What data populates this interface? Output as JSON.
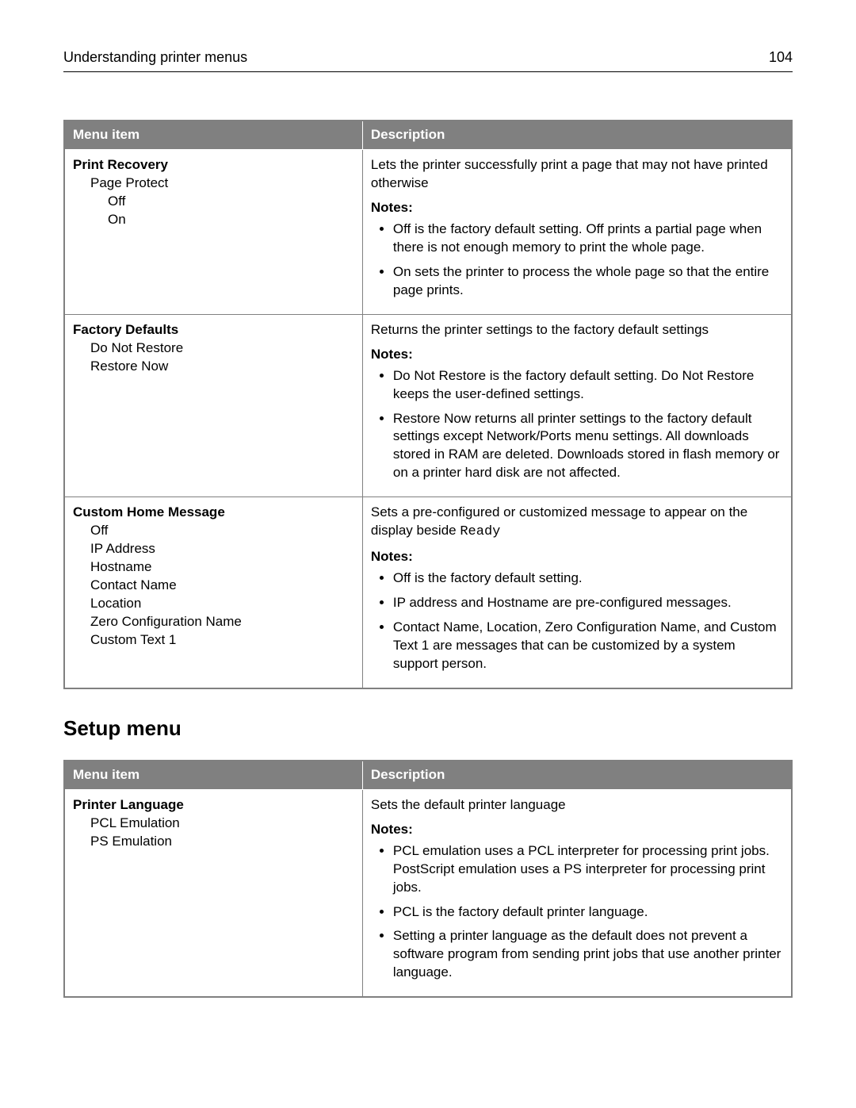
{
  "header": {
    "title": "Understanding printer menus",
    "page": "104"
  },
  "section_title": "Setup menu",
  "columns": {
    "menu": "Menu item",
    "desc": "Description"
  },
  "table1": {
    "rows": [
      {
        "title": "Print Recovery",
        "items_l1": [
          "Page Protect"
        ],
        "items_l2": [
          "Off",
          "On"
        ],
        "lead": "Lets the printer successfully print a page that may not have printed otherwise",
        "notes_label": "Notes:",
        "notes": [
          "Off is the factory default setting. Off prints a partial page when there is not enough memory to print the whole page.",
          "On sets the printer to process the whole page so that the entire page prints."
        ]
      },
      {
        "title": "Factory Defaults",
        "items_l1": [
          "Do Not Restore",
          "Restore Now"
        ],
        "items_l2": [],
        "lead": "Returns the printer settings to the factory default settings",
        "notes_label": "Notes:",
        "notes": [
          "Do Not Restore is the factory default setting. Do Not Restore keeps the user-defined settings.",
          "Restore Now returns all printer settings to the factory default settings except Network/Ports menu settings. All downloads stored in RAM are deleted. Downloads stored in flash memory or on a printer hard disk are not affected."
        ]
      },
      {
        "title": "Custom Home Message",
        "items_l1": [
          "Off",
          "IP Address",
          "Hostname",
          "Contact Name",
          "Location",
          "Zero Configuration Name",
          "Custom Text 1"
        ],
        "items_l2": [],
        "lead_prefix": "Sets a pre-configured or customized message to appear on the display beside ",
        "lead_mono": "Ready",
        "notes_label": "Notes:",
        "notes": [
          "Off is the factory default setting.",
          "IP address and Hostname are pre-configured messages.",
          "Contact Name, Location, Zero Configuration Name, and Custom Text 1 are messages that can be customized by a system support person."
        ]
      }
    ]
  },
  "table2": {
    "rows": [
      {
        "title": "Printer Language",
        "items_l1": [
          "PCL Emulation",
          "PS Emulation"
        ],
        "items_l2": [],
        "lead": "Sets the default printer language",
        "notes_label": "Notes:",
        "notes": [
          "PCL emulation uses a PCL interpreter for processing print jobs. PostScript emulation uses a PS interpreter for processing print jobs.",
          "PCL is the factory default printer language.",
          "Setting a printer language as the default does not prevent a software program from sending print jobs that use another printer language."
        ]
      }
    ]
  }
}
